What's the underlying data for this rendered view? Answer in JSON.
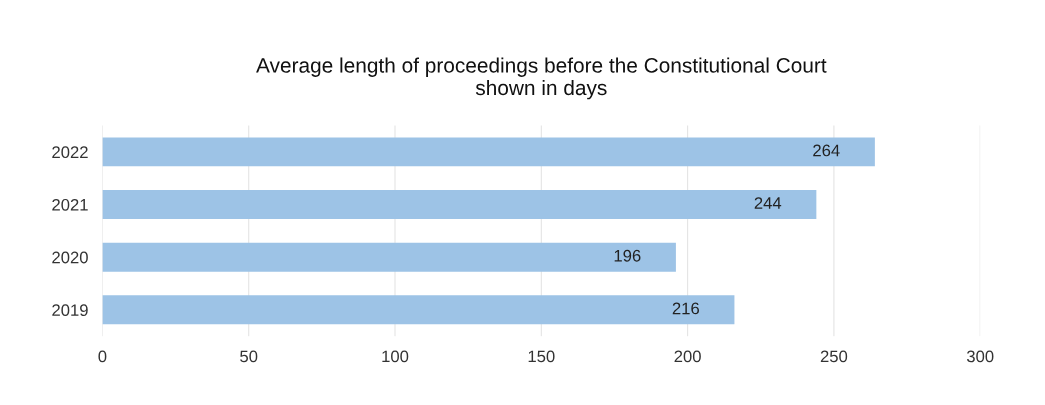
{
  "chart_data": {
    "type": "bar",
    "orientation": "horizontal",
    "title": "Average length of proceedings before the Constitutional Court\nshown in days",
    "categories": [
      "2022",
      "2021",
      "2020",
      "2019"
    ],
    "values": [
      264,
      244,
      196,
      216
    ],
    "color": "#9dc3e6",
    "xlim": [
      0,
      300
    ],
    "xticks": [
      0,
      50,
      100,
      150,
      200,
      250,
      300
    ],
    "grid": "x",
    "data_labels": true
  }
}
